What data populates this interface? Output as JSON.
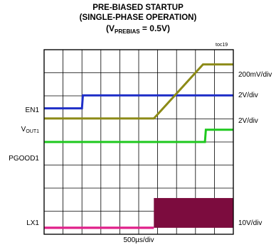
{
  "chart_data": {
    "type": "line",
    "title_line1": "PRE-BIASED STARTUP",
    "title_line2": "(SINGLE-PHASE OPERATION)",
    "title_line3_prefix": "(V",
    "title_line3_sub": "PREBIAS",
    "title_line3_suffix": " = 0.5V)",
    "tag": "toc19",
    "xlabel": "500µs/div",
    "x_divisions": 10,
    "y_divisions": 8,
    "grid": true,
    "series": [
      {
        "name": "EN1",
        "name_sub": "",
        "scale": "2V/div",
        "color": "#1f2fc8",
        "points": [
          [
            0,
            5.46
          ],
          [
            2.0,
            5.46
          ],
          [
            2.05,
            6.02
          ],
          [
            10,
            6.02
          ]
        ]
      },
      {
        "name": "V",
        "name_sub": "OUT1",
        "scale": "200mV/div",
        "color": "#8c8a16",
        "points": [
          [
            0,
            5.02
          ],
          [
            5.8,
            5.02
          ],
          [
            8.4,
            7.36
          ],
          [
            10,
            7.36
          ]
        ]
      },
      {
        "name": "PGOOD1",
        "name_sub": "",
        "scale": "2V/div",
        "color": "#1ec81e",
        "points": [
          [
            0,
            4.0
          ],
          [
            8.5,
            4.0
          ],
          [
            8.55,
            4.53
          ],
          [
            10,
            4.53
          ]
        ]
      },
      {
        "name": "LX1",
        "name_sub": "",
        "scale": "10V/div",
        "color": "#7c0c3e",
        "points": [
          [
            0,
            0.28
          ],
          [
            5.8,
            0.28
          ]
        ],
        "burst": {
          "x_start": 5.8,
          "x_end": 10,
          "low": 0.28,
          "high": 1.57
        }
      }
    ],
    "right_labels": [
      "200mV/div",
      "2V/div",
      "2V/div",
      "10V/div"
    ]
  }
}
